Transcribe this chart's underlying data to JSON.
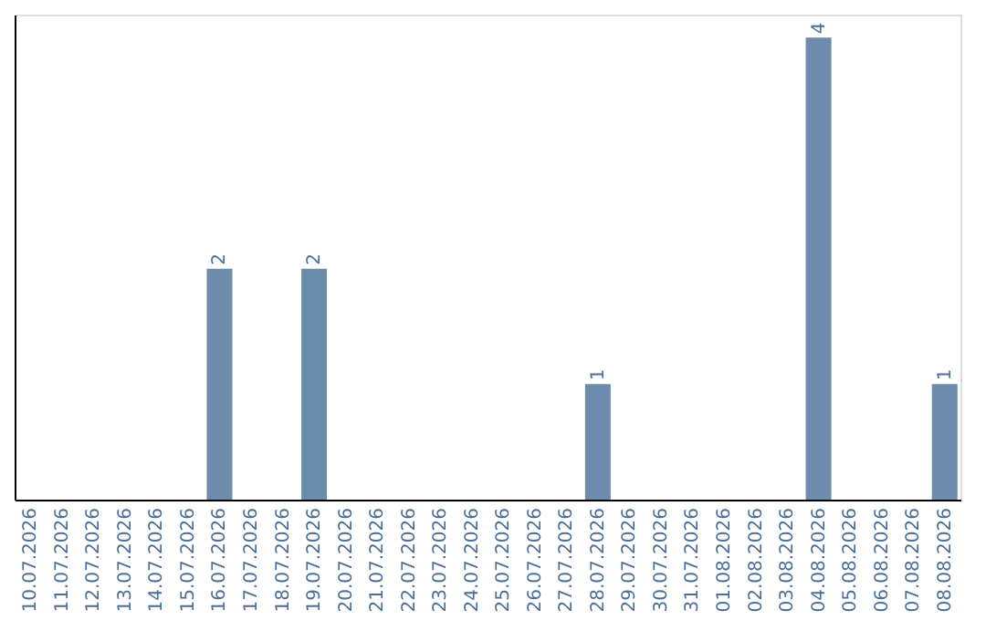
{
  "chart_data": {
    "type": "bar",
    "categories": [
      "10.07.2026",
      "11.07.2026",
      "12.07.2026",
      "13.07.2026",
      "14.07.2026",
      "15.07.2026",
      "16.07.2026",
      "17.07.2026",
      "18.07.2026",
      "19.07.2026",
      "20.07.2026",
      "21.07.2026",
      "22.07.2026",
      "23.07.2026",
      "24.07.2026",
      "25.07.2026",
      "26.07.2026",
      "27.07.2026",
      "28.07.2026",
      "29.07.2026",
      "30.07.2026",
      "31.07.2026",
      "01.08.2026",
      "02.08.2026",
      "03.08.2026",
      "04.08.2026",
      "05.08.2026",
      "06.08.2026",
      "07.08.2026",
      "08.08.2026"
    ],
    "values": [
      0,
      0,
      0,
      0,
      0,
      0,
      2,
      0,
      0,
      2,
      0,
      0,
      0,
      0,
      0,
      0,
      0,
      0,
      1,
      0,
      0,
      0,
      0,
      0,
      0,
      4,
      0,
      0,
      0,
      1
    ],
    "value_labels": [
      null,
      null,
      null,
      null,
      null,
      null,
      "2",
      null,
      null,
      "2",
      null,
      null,
      null,
      null,
      null,
      null,
      null,
      null,
      "1",
      null,
      null,
      null,
      null,
      null,
      null,
      "4",
      null,
      null,
      null,
      "1"
    ],
    "color": "#6d8cab",
    "ylim": [
      0,
      4.2
    ],
    "tick_labels": "x",
    "grid": false
  }
}
